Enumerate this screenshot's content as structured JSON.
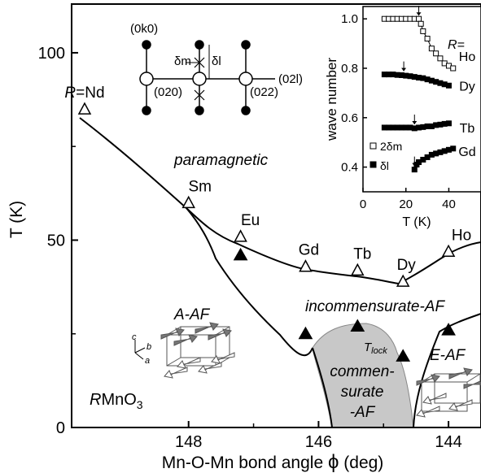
{
  "chart_data": [
    {
      "type": "line",
      "title": "",
      "xlabel_parts": [
        "Mn-O-Mn bond angle ",
        "ϕ",
        " (deg)"
      ],
      "ylabel": "T (K)",
      "xlim": [
        149.8,
        143.5
      ],
      "ylim": [
        0,
        113
      ],
      "x_ticks": [
        148,
        146,
        144
      ],
      "y_ticks": [
        0,
        50,
        100
      ],
      "compound_label": "RMnO3",
      "series": [
        {
          "name": "",
          "marker": "open-triangle",
          "points": [
            {
              "x": 149.6,
              "y": 85,
              "label": "R=Nd"
            },
            {
              "x": 148.0,
              "y": 60,
              "label": "Sm"
            },
            {
              "x": 147.2,
              "y": 51,
              "label": "Eu"
            },
            {
              "x": 146.2,
              "y": 43,
              "label": "Gd"
            },
            {
              "x": 145.4,
              "y": 42,
              "label": "Tb"
            },
            {
              "x": 144.7,
              "y": 39,
              "label": "Dy"
            },
            {
              "x": 144.0,
              "y": 47,
              "label": "Ho"
            }
          ]
        },
        {
          "name": "",
          "marker": "filled-triangle",
          "points": [
            {
              "x": 147.2,
              "y": 46
            },
            {
              "x": 146.2,
              "y": 25
            },
            {
              "x": 145.4,
              "y": 27
            },
            {
              "x": 144.7,
              "y": 19
            },
            {
              "x": 144.0,
              "y": 26
            }
          ]
        }
      ],
      "phase_labels": {
        "paramagnetic": "paramagnetic",
        "incommensurate": "incommensurate-AF",
        "commensurate": [
          "commen-",
          "surate",
          "-AF"
        ],
        "a_af": "A-AF",
        "e_af": "E-AF",
        "tlock": "T",
        "tlock_sub": "lock"
      },
      "axes_letters": [
        "c",
        "b",
        "a"
      ],
      "reciprocal_labels": [
        "(0k0)",
        "(020)",
        "(022)",
        "(02l)",
        "δm",
        "δl"
      ]
    },
    {
      "type": "scatter",
      "xlabel": "T (K)",
      "ylabel": "wave number",
      "xlim": [
        0,
        55
      ],
      "ylim": [
        0.3,
        1.05
      ],
      "x_ticks": [
        0,
        20,
        40
      ],
      "y_ticks": [
        0.4,
        0.6,
        0.8,
        1.0
      ],
      "r_label": "R=",
      "legend": [
        "2δm",
        "δl"
      ],
      "series": [
        {
          "name": "Ho",
          "marker": "open-square",
          "points": [
            [
              10,
              1.0
            ],
            [
              12,
              1.0
            ],
            [
              14,
              1.0
            ],
            [
              16,
              1.0
            ],
            [
              18,
              1.0
            ],
            [
              20,
              1.0
            ],
            [
              22,
              1.0
            ],
            [
              24,
              1.0
            ],
            [
              26,
              1.0
            ],
            [
              27,
              0.98
            ],
            [
              28,
              0.95
            ],
            [
              30,
              0.92
            ],
            [
              32,
              0.88
            ],
            [
              34,
              0.86
            ],
            [
              36,
              0.84
            ],
            [
              38,
              0.82
            ],
            [
              40,
              0.81
            ],
            [
              42,
              0.8
            ]
          ]
        },
        {
          "name": "Dy",
          "marker": "filled-square",
          "points": [
            [
              10,
              0.775
            ],
            [
              12,
              0.775
            ],
            [
              14,
              0.775
            ],
            [
              16,
              0.773
            ],
            [
              18,
              0.772
            ],
            [
              20,
              0.77
            ],
            [
              22,
              0.768
            ],
            [
              24,
              0.765
            ],
            [
              26,
              0.762
            ],
            [
              28,
              0.76
            ],
            [
              30,
              0.755
            ],
            [
              32,
              0.75
            ],
            [
              34,
              0.745
            ],
            [
              36,
              0.74
            ],
            [
              38,
              0.735
            ],
            [
              40,
              0.73
            ]
          ]
        },
        {
          "name": "Tb",
          "marker": "filled-square",
          "points": [
            [
              10,
              0.56
            ],
            [
              12,
              0.56
            ],
            [
              14,
              0.56
            ],
            [
              16,
              0.56
            ],
            [
              18,
              0.56
            ],
            [
              20,
              0.56
            ],
            [
              22,
              0.56
            ],
            [
              24,
              0.557
            ],
            [
              26,
              0.56
            ],
            [
              28,
              0.562
            ],
            [
              30,
              0.565
            ],
            [
              32,
              0.565
            ],
            [
              34,
              0.57
            ],
            [
              36,
              0.572
            ],
            [
              38,
              0.575
            ],
            [
              40,
              0.577
            ]
          ]
        },
        {
          "name": "Gd",
          "marker": "filled-square",
          "points": [
            [
              24,
              0.39
            ],
            [
              25,
              0.41
            ],
            [
              26,
              0.42
            ],
            [
              28,
              0.43
            ],
            [
              30,
              0.44
            ],
            [
              32,
              0.45
            ],
            [
              34,
              0.455
            ],
            [
              36,
              0.46
            ],
            [
              38,
              0.465
            ],
            [
              40,
              0.47
            ],
            [
              42,
              0.475
            ]
          ]
        }
      ]
    }
  ]
}
